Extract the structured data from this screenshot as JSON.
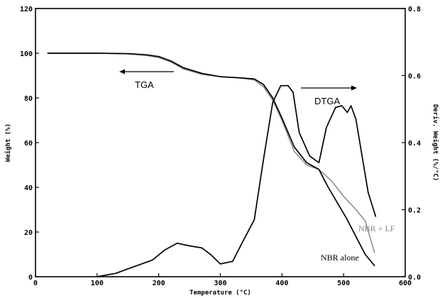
{
  "chart_data": {
    "type": "line",
    "title": "",
    "xlabel": "Temperature (°C)",
    "ylabel": "Weight (%)",
    "y2label": "Deriv. Weight (%/°C)",
    "xlim": [
      0,
      600
    ],
    "ylim": [
      0,
      120
    ],
    "y2lim": [
      0.0,
      0.8
    ],
    "x_ticks": [
      "0",
      "100",
      "200",
      "300",
      "400",
      "500",
      "600"
    ],
    "y_ticks": [
      "0",
      "20",
      "40",
      "60",
      "80",
      "100",
      "120"
    ],
    "y2_ticks": [
      "0.0",
      "0.2",
      "0.4",
      "0.6",
      "0.8"
    ],
    "grid": false,
    "annotations": {
      "tga": "TGA",
      "dtga": "DTGA",
      "nbr_lf": "NBR + LF",
      "nbr_alone": "NBR alone"
    },
    "series": [
      {
        "name": "NBR + LF",
        "axis": "left",
        "color": "#888888",
        "x": [
          20,
          100,
          150,
          180,
          200,
          220,
          240,
          270,
          300,
          330,
          355,
          370,
          385,
          400,
          420,
          440,
          460,
          480,
          500,
          520,
          535,
          550
        ],
        "y": [
          100,
          100,
          99.7,
          99,
          98,
          96,
          93,
          90.5,
          89.5,
          89,
          88,
          85,
          79,
          70,
          56,
          50,
          48,
          43,
          36,
          30,
          25,
          11
        ]
      },
      {
        "name": "NBR alone",
        "axis": "left",
        "color": "#000000",
        "x": [
          20,
          100,
          150,
          180,
          200,
          220,
          240,
          270,
          300,
          330,
          355,
          370,
          385,
          400,
          420,
          440,
          460,
          475,
          490,
          505,
          520,
          535,
          550
        ],
        "y": [
          100,
          100,
          99.8,
          99.3,
          98.5,
          96.5,
          93.5,
          91,
          89.5,
          89,
          88.5,
          86,
          80,
          71,
          58,
          51,
          48,
          40,
          33,
          26,
          18,
          10,
          5
        ]
      },
      {
        "name": "",
        "axis": "right",
        "color": "#000000",
        "x": [
          100,
          130,
          160,
          190,
          210,
          230,
          250,
          270,
          285,
          300,
          320,
          335,
          355,
          370,
          385,
          398,
          410,
          418,
          428,
          445,
          460,
          472,
          487,
          497,
          506,
          512,
          520,
          530,
          540,
          552
        ],
        "y": [
          0.0,
          0.01,
          0.03,
          0.05,
          0.08,
          0.1,
          0.092,
          0.086,
          0.065,
          0.038,
          0.046,
          0.1,
          0.17,
          0.35,
          0.52,
          0.57,
          0.57,
          0.55,
          0.43,
          0.36,
          0.34,
          0.445,
          0.505,
          0.51,
          0.49,
          0.51,
          0.47,
          0.36,
          0.25,
          0.18
        ]
      }
    ]
  }
}
